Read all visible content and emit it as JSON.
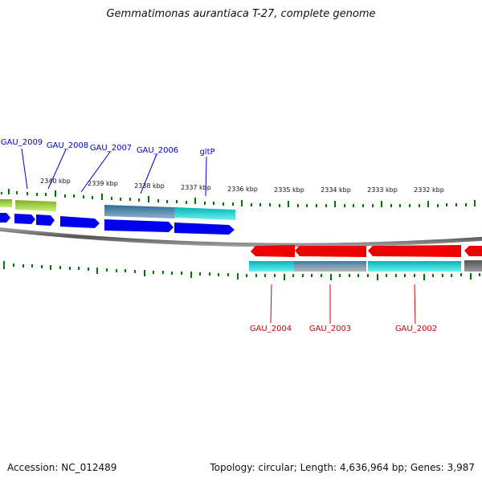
{
  "title": "Gemmatimonas aurantiaca T-27, complete genome",
  "footer": {
    "accession": "Accession: NC_012489",
    "stats": "Topology: circular; Length: 4,636,964 bp; Genes: 3,987"
  },
  "colors": {
    "plus_gene": "#0000ee",
    "minus_gene": "#ee0000",
    "cds_cyan": "#00cccc",
    "cds_steel": "#4a7fa8",
    "cds_green": "#99cc33",
    "cds_gray": "#666666",
    "tick": "#007700",
    "backbone": "#777777"
  },
  "scale_labels": [
    "2340 kbp",
    "2339 kbp",
    "2338 kbp",
    "2337 kbp",
    "2336 kbp",
    "2335 kbp",
    "2334 kbp",
    "2333 kbp",
    "2332 kbp"
  ],
  "plus_strand_genes": [
    "GAU_2009",
    "GAU_2008",
    "GAU_2007",
    "GAU_2006",
    "gltP"
  ],
  "minus_strand_genes": [
    "GAU_2004",
    "GAU_2003",
    "GAU_2002"
  ]
}
